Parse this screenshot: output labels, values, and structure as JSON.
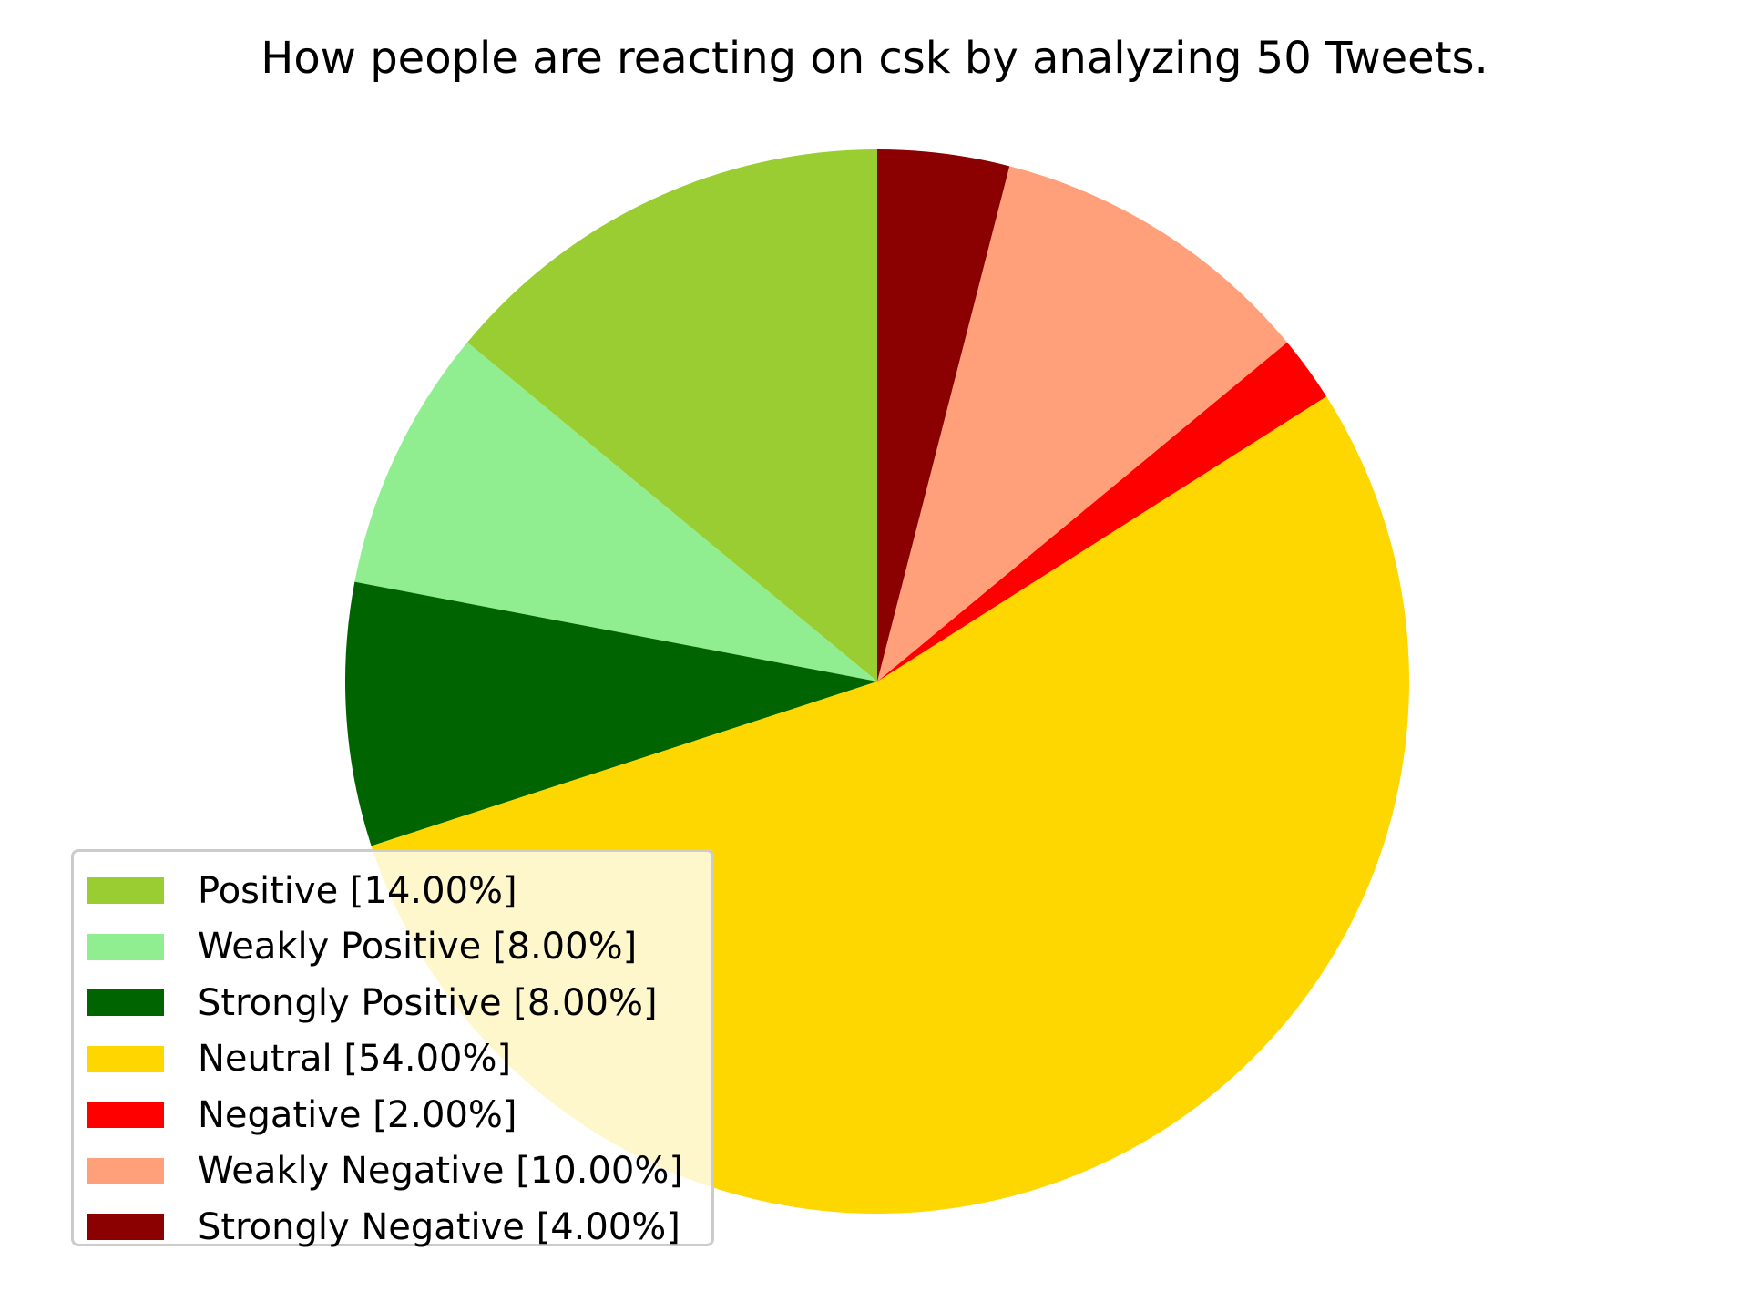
{
  "chart_data": {
    "type": "pie",
    "title": "How people are reacting on csk by analyzing 50 Tweets.",
    "start_angle_deg": 90,
    "direction": "counterclockwise",
    "legend_position": "lower-left",
    "slices": [
      {
        "label": "Positive [14.00%]",
        "value": 14.0,
        "color": "#9ACD32"
      },
      {
        "label": "Weakly Positive [8.00%]",
        "value": 8.0,
        "color": "#90EE90"
      },
      {
        "label": "Strongly Positive [8.00%]",
        "value": 8.0,
        "color": "#006400"
      },
      {
        "label": "Neutral [54.00%]",
        "value": 54.0,
        "color": "#FFD700"
      },
      {
        "label": "Negative [2.00%]",
        "value": 2.0,
        "color": "#FF0000"
      },
      {
        "label": "Weakly Negative [10.00%]",
        "value": 10.0,
        "color": "#FFA07A"
      },
      {
        "label": "Strongly Negative [4.00%]",
        "value": 4.0,
        "color": "#8B0000"
      }
    ]
  }
}
